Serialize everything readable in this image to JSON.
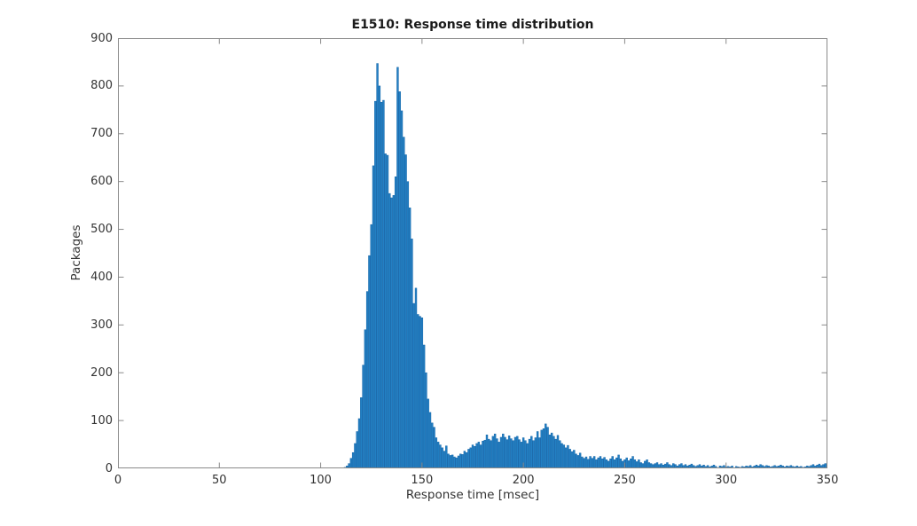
{
  "chart_data": {
    "type": "bar",
    "subtype": "histogram",
    "title": "E1510: Response time distribution",
    "xlabel": "Response time [msec]",
    "ylabel": "Packages",
    "xlim": [
      0,
      350
    ],
    "ylim": [
      0,
      900
    ],
    "xticks": [
      0,
      50,
      100,
      150,
      200,
      250,
      300,
      350
    ],
    "yticks": [
      0,
      100,
      200,
      300,
      400,
      500,
      600,
      700,
      800,
      900
    ],
    "grid": false,
    "legend": "none",
    "first_bin_msec": 112,
    "bin_width_msec": 1,
    "values": [
      2,
      5,
      10,
      21,
      33,
      52,
      77,
      104,
      148,
      216,
      290,
      370,
      445,
      510,
      633,
      768,
      847,
      800,
      766,
      770,
      658,
      655,
      575,
      566,
      571,
      610,
      839,
      788,
      748,
      693,
      656,
      600,
      545,
      480,
      345,
      377,
      322,
      318,
      315,
      258,
      200,
      145,
      117,
      95,
      86,
      64,
      55,
      49,
      43,
      36,
      47,
      30,
      27,
      28,
      24,
      22,
      26,
      30,
      29,
      36,
      33,
      40,
      43,
      49,
      46,
      52,
      55,
      49,
      57,
      59,
      70,
      61,
      58,
      67,
      72,
      62,
      55,
      65,
      72,
      65,
      60,
      68,
      62,
      58,
      65,
      67,
      60,
      55,
      64,
      58,
      52,
      61,
      67,
      58,
      64,
      77,
      64,
      80,
      83,
      93,
      86,
      70,
      74,
      67,
      61,
      69,
      58,
      52,
      49,
      43,
      48,
      40,
      35,
      38,
      30,
      27,
      32,
      24,
      21,
      24,
      19,
      25,
      21,
      25,
      18,
      22,
      25,
      20,
      23,
      18,
      15,
      20,
      25,
      18,
      22,
      28,
      20,
      15,
      18,
      22,
      16,
      20,
      25,
      18,
      14,
      18,
      12,
      10,
      15,
      18,
      12,
      10,
      8,
      10,
      12,
      8,
      10,
      7,
      9,
      12,
      8,
      6,
      10,
      8,
      5,
      8,
      10,
      6,
      8,
      5,
      7,
      9,
      6,
      4,
      6,
      8,
      5,
      7,
      4,
      6,
      3,
      5,
      7,
      4,
      0,
      5,
      4,
      6,
      3,
      4,
      3,
      5,
      0,
      4,
      3,
      2,
      4,
      3,
      5,
      4,
      6,
      3,
      5,
      7,
      5,
      8,
      6,
      4,
      6,
      5,
      3,
      4,
      6,
      4,
      5,
      7,
      5,
      3,
      5,
      4,
      6,
      4,
      3,
      5,
      3,
      4,
      2,
      3,
      5,
      4,
      6,
      8,
      5,
      7,
      9,
      6,
      8,
      10,
      6
    ],
    "bar_fill_color": "#2380C4",
    "bar_edge_color": "#1565A8",
    "axis_color": "#8A8A8A",
    "tick_text_color": "#333333",
    "title_color": "#1a1a1a"
  }
}
